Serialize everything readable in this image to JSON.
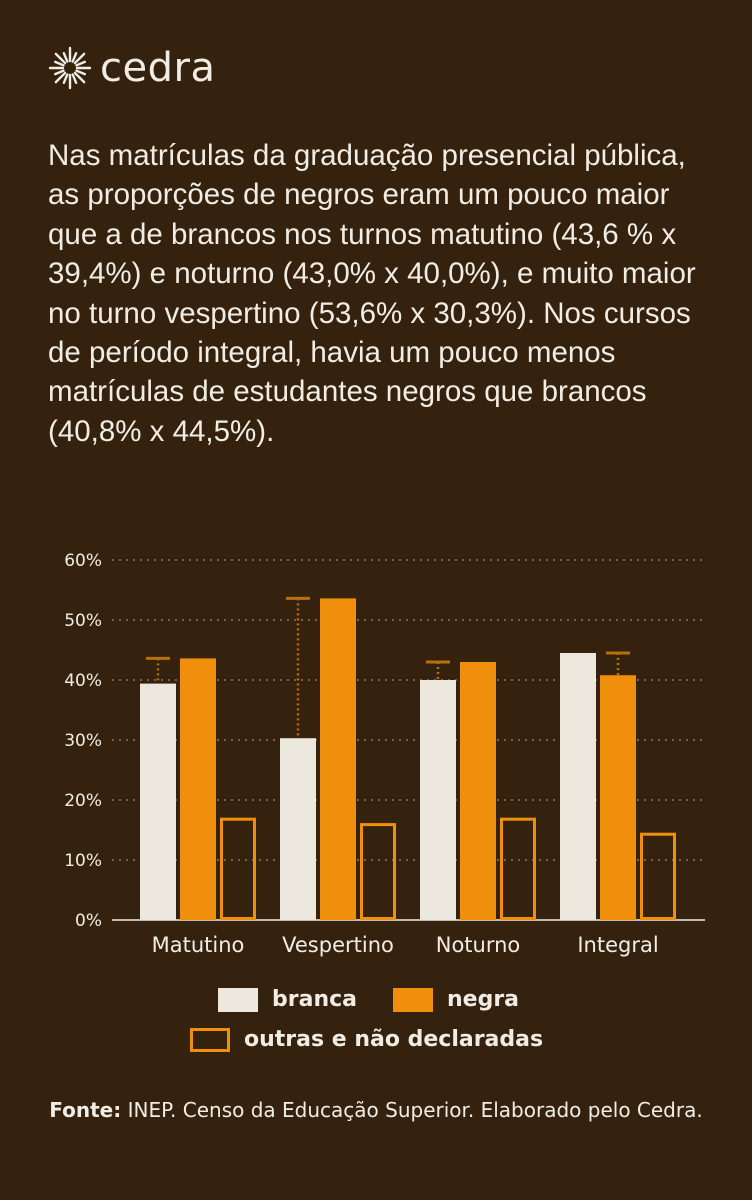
{
  "brand": {
    "name": "cedra",
    "icon": "sun-icon"
  },
  "intro_text": "Nas matrículas da graduação presencial pública, as proporções de negros eram um pouco maior que a de brancos nos turnos matutino (43,6 % x 39,4%) e noturno (43,0% x 40,0%), e muito maior no turno vespertino (53,6% x 30,3%). Nos cursos de período integral, havia um pouco menos matrículas de estudantes negros que brancos (40,8% x 44,5%).",
  "colors": {
    "background": "#34220f",
    "branca": "#ece8de",
    "negra": "#ef8f0c",
    "outras": "#ef8f0c",
    "gap_marker": "#b86f10",
    "text": "#f1ede4"
  },
  "chart_data": {
    "type": "bar",
    "title": "",
    "xlabel": "",
    "ylabel": "",
    "categories": [
      "Matutino",
      "Vespertino",
      "Noturno",
      "Integral"
    ],
    "series": [
      {
        "name": "branca",
        "values": [
          39.4,
          30.3,
          40.0,
          44.5
        ],
        "style": "filled"
      },
      {
        "name": "negra",
        "values": [
          43.6,
          53.6,
          43.0,
          40.8
        ],
        "style": "filled"
      },
      {
        "name": "outras e não declaradas",
        "values": [
          16.8,
          15.9,
          16.8,
          14.3
        ],
        "style": "outline"
      }
    ],
    "ylim": [
      0,
      60
    ],
    "yticks": [
      "0%",
      "10%",
      "20%",
      "30%",
      "40%",
      "50%",
      "60%"
    ],
    "grid": true,
    "gap_markers": "dotted line between branca and negra values",
    "legend_position": "bottom"
  },
  "legend": {
    "branca": "branca",
    "negra": "negra",
    "outras": "outras e não declaradas"
  },
  "source": {
    "label": "Fonte:",
    "text": " INEP. Censo da Educação Superior. Elaborado pelo Cedra."
  }
}
